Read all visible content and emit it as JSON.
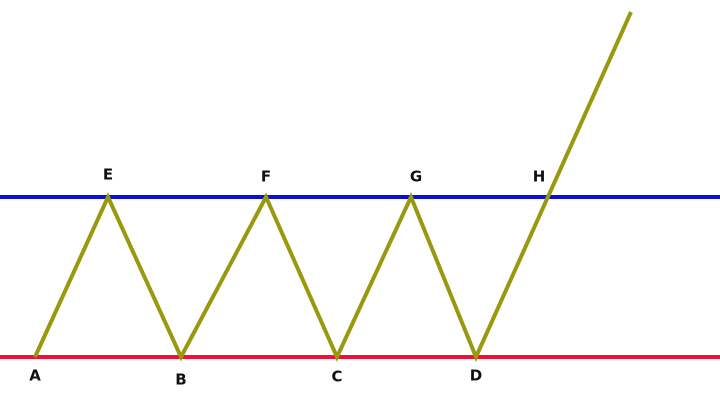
{
  "points": [
    "A",
    "B",
    "C",
    "D",
    "E",
    "F",
    "G",
    "H"
  ]
}
